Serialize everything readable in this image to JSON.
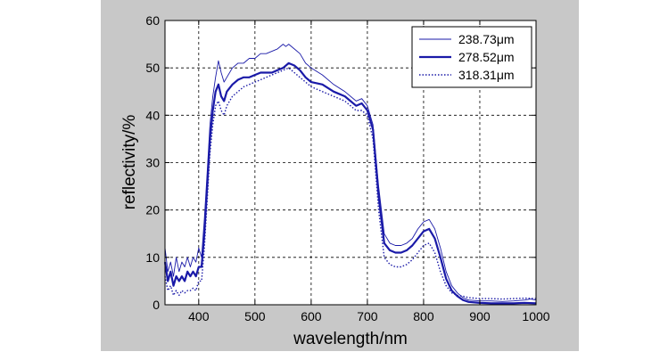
{
  "chart_data": {
    "type": "line",
    "xlabel": "wavelength/nm",
    "ylabel": "reflectivity/%",
    "xlim": [
      340,
      1000
    ],
    "ylim": [
      0,
      60
    ],
    "xticks": [
      400,
      500,
      600,
      700,
      800,
      900,
      1000
    ],
    "yticks": [
      0,
      10,
      20,
      30,
      40,
      50,
      60
    ],
    "grid": true,
    "legend_position": "top-right",
    "series_color": "#1a1aa8",
    "series": [
      {
        "name": "238.73μm",
        "style": "thin",
        "points": [
          [
            340,
            12
          ],
          [
            345,
            7
          ],
          [
            350,
            9
          ],
          [
            355,
            6
          ],
          [
            360,
            10
          ],
          [
            365,
            7
          ],
          [
            370,
            9
          ],
          [
            375,
            8
          ],
          [
            380,
            10
          ],
          [
            385,
            8
          ],
          [
            390,
            10
          ],
          [
            395,
            9
          ],
          [
            400,
            12
          ],
          [
            405,
            10
          ],
          [
            410,
            18
          ],
          [
            415,
            28
          ],
          [
            420,
            38
          ],
          [
            425,
            44
          ],
          [
            430,
            48
          ],
          [
            435,
            51.5
          ],
          [
            440,
            49
          ],
          [
            445,
            47
          ],
          [
            450,
            48
          ],
          [
            460,
            50
          ],
          [
            470,
            51
          ],
          [
            480,
            51
          ],
          [
            490,
            52
          ],
          [
            500,
            52
          ],
          [
            510,
            53
          ],
          [
            520,
            53
          ],
          [
            530,
            53.5
          ],
          [
            540,
            54
          ],
          [
            550,
            55
          ],
          [
            555,
            54.5
          ],
          [
            560,
            55
          ],
          [
            570,
            54
          ],
          [
            580,
            53
          ],
          [
            590,
            51
          ],
          [
            600,
            50
          ],
          [
            620,
            48.5
          ],
          [
            640,
            46.5
          ],
          [
            660,
            45
          ],
          [
            680,
            43
          ],
          [
            690,
            43.5
          ],
          [
            700,
            42
          ],
          [
            710,
            38
          ],
          [
            720,
            25
          ],
          [
            730,
            15
          ],
          [
            740,
            13
          ],
          [
            750,
            12.5
          ],
          [
            760,
            12.5
          ],
          [
            770,
            13
          ],
          [
            780,
            14
          ],
          [
            790,
            16
          ],
          [
            800,
            17.5
          ],
          [
            810,
            18
          ],
          [
            820,
            16
          ],
          [
            830,
            12
          ],
          [
            840,
            7
          ],
          [
            850,
            4
          ],
          [
            860,
            2.5
          ],
          [
            870,
            1.5
          ],
          [
            880,
            1
          ],
          [
            900,
            0.8
          ],
          [
            920,
            0.8
          ],
          [
            940,
            0.7
          ],
          [
            960,
            0.8
          ],
          [
            980,
            1
          ],
          [
            990,
            1.2
          ],
          [
            1000,
            1
          ]
        ]
      },
      {
        "name": "278.52μm",
        "style": "thick",
        "points": [
          [
            340,
            9
          ],
          [
            345,
            5
          ],
          [
            350,
            7
          ],
          [
            355,
            4
          ],
          [
            360,
            6
          ],
          [
            365,
            5
          ],
          [
            370,
            6
          ],
          [
            375,
            5
          ],
          [
            380,
            7
          ],
          [
            385,
            6
          ],
          [
            390,
            7
          ],
          [
            395,
            6
          ],
          [
            400,
            8
          ],
          [
            405,
            8
          ],
          [
            410,
            15
          ],
          [
            415,
            25
          ],
          [
            420,
            35
          ],
          [
            425,
            41
          ],
          [
            430,
            45
          ],
          [
            435,
            46.5
          ],
          [
            440,
            44
          ],
          [
            445,
            43
          ],
          [
            450,
            45
          ],
          [
            460,
            46.5
          ],
          [
            470,
            47.5
          ],
          [
            480,
            48
          ],
          [
            490,
            48
          ],
          [
            500,
            48.5
          ],
          [
            510,
            49
          ],
          [
            520,
            49
          ],
          [
            530,
            49
          ],
          [
            540,
            49.5
          ],
          [
            550,
            50
          ],
          [
            560,
            51
          ],
          [
            570,
            50.5
          ],
          [
            580,
            49.5
          ],
          [
            590,
            48
          ],
          [
            600,
            47
          ],
          [
            620,
            46.5
          ],
          [
            640,
            45
          ],
          [
            660,
            44
          ],
          [
            680,
            42
          ],
          [
            690,
            42.5
          ],
          [
            700,
            41
          ],
          [
            710,
            37
          ],
          [
            720,
            23
          ],
          [
            730,
            13
          ],
          [
            740,
            11.5
          ],
          [
            750,
            11
          ],
          [
            760,
            11
          ],
          [
            770,
            11.5
          ],
          [
            780,
            12.5
          ],
          [
            790,
            14
          ],
          [
            800,
            15.5
          ],
          [
            810,
            16
          ],
          [
            820,
            14
          ],
          [
            830,
            10
          ],
          [
            840,
            5.5
          ],
          [
            850,
            3
          ],
          [
            860,
            1.8
          ],
          [
            870,
            1
          ],
          [
            880,
            0.6
          ],
          [
            900,
            0.4
          ],
          [
            920,
            0.3
          ],
          [
            940,
            0.3
          ],
          [
            960,
            0.3
          ],
          [
            980,
            0.4
          ],
          [
            1000,
            0.3
          ]
        ]
      },
      {
        "name": "318.31μm",
        "style": "dotted",
        "points": [
          [
            340,
            6
          ],
          [
            345,
            3
          ],
          [
            350,
            4
          ],
          [
            355,
            2
          ],
          [
            360,
            3
          ],
          [
            365,
            2
          ],
          [
            370,
            3
          ],
          [
            375,
            2.5
          ],
          [
            380,
            3
          ],
          [
            385,
            3
          ],
          [
            390,
            3.5
          ],
          [
            395,
            3
          ],
          [
            400,
            5
          ],
          [
            405,
            5
          ],
          [
            410,
            12
          ],
          [
            415,
            22
          ],
          [
            420,
            32
          ],
          [
            425,
            38
          ],
          [
            430,
            42
          ],
          [
            435,
            43
          ],
          [
            440,
            41
          ],
          [
            445,
            40
          ],
          [
            450,
            42
          ],
          [
            460,
            44
          ],
          [
            470,
            45
          ],
          [
            480,
            46
          ],
          [
            490,
            46.5
          ],
          [
            500,
            47
          ],
          [
            510,
            47.5
          ],
          [
            520,
            48
          ],
          [
            530,
            48.5
          ],
          [
            540,
            49
          ],
          [
            550,
            49.5
          ],
          [
            560,
            50
          ],
          [
            570,
            49
          ],
          [
            580,
            48
          ],
          [
            590,
            47
          ],
          [
            600,
            46
          ],
          [
            620,
            45
          ],
          [
            640,
            44
          ],
          [
            660,
            43
          ],
          [
            680,
            41
          ],
          [
            690,
            41
          ],
          [
            700,
            40
          ],
          [
            710,
            35
          ],
          [
            720,
            20
          ],
          [
            730,
            10
          ],
          [
            740,
            8.5
          ],
          [
            750,
            8
          ],
          [
            760,
            8
          ],
          [
            770,
            8.5
          ],
          [
            780,
            9.5
          ],
          [
            790,
            11
          ],
          [
            800,
            12.5
          ],
          [
            810,
            13
          ],
          [
            820,
            11
          ],
          [
            830,
            7
          ],
          [
            840,
            4
          ],
          [
            850,
            2.5
          ],
          [
            860,
            2
          ],
          [
            870,
            1.8
          ],
          [
            880,
            1.5
          ],
          [
            900,
            1.3
          ],
          [
            920,
            1.3
          ],
          [
            940,
            1.2
          ],
          [
            960,
            1.3
          ],
          [
            980,
            1.4
          ],
          [
            1000,
            1.3
          ]
        ]
      }
    ]
  }
}
